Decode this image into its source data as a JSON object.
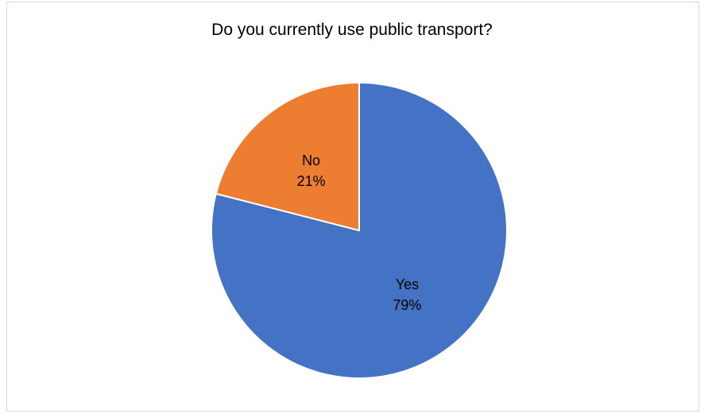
{
  "chart_data": {
    "type": "pie",
    "title": "Do you currently use public transport?",
    "categories": [
      "Yes",
      "No"
    ],
    "values": [
      79,
      21
    ],
    "value_labels": [
      "79%",
      "21%"
    ],
    "colors": [
      "#4472c4",
      "#ed7d31"
    ],
    "start_angle": "12 o'clock, clockwise",
    "legend": "none",
    "data_labels": "inside"
  }
}
